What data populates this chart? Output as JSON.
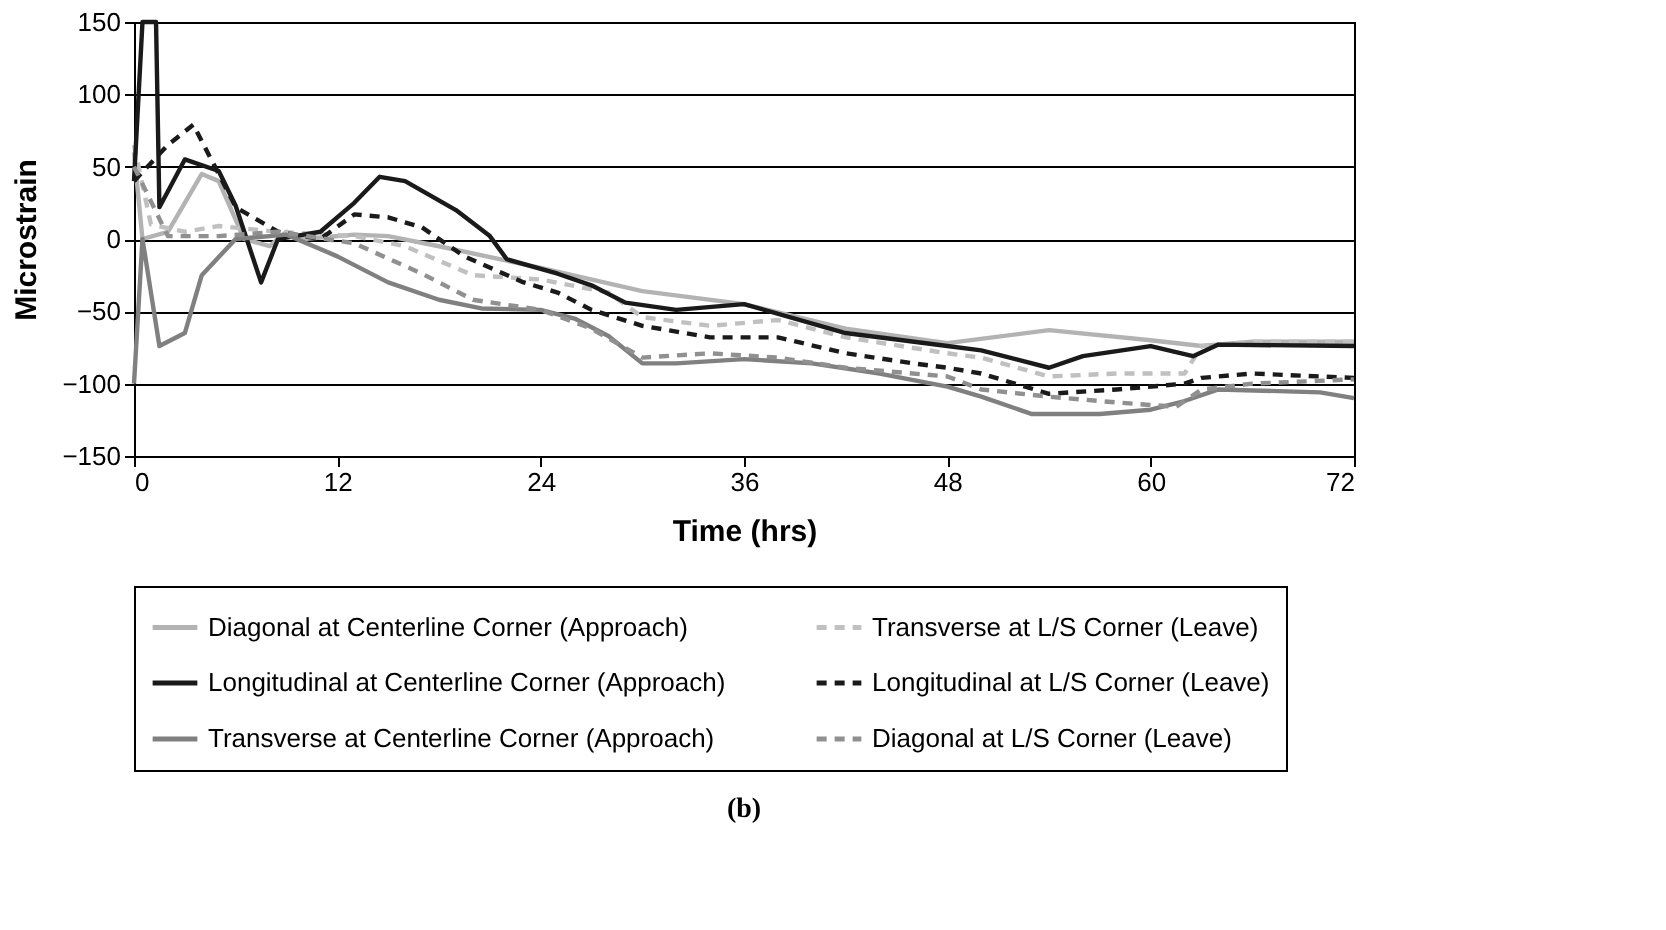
{
  "chart_data": {
    "type": "line",
    "xlabel": "Time (hrs)",
    "ylabel": "Microstrain",
    "xlim": [
      0,
      72
    ],
    "xticks": [
      0,
      12,
      24,
      36,
      48,
      60,
      72
    ],
    "ylim": [
      -150,
      150
    ],
    "yticks": [
      -150,
      -100,
      -50,
      0,
      50,
      100,
      150
    ],
    "grid": "y",
    "legend": "bottom",
    "annotations": [
      "(b)"
    ],
    "series": [
      {
        "name": "Diagonal at Centerline Corner (Approach)",
        "color": "#b3b3b3",
        "line_style": "solid",
        "x": [
          0,
          0.5,
          2,
          4,
          5,
          6.5,
          8,
          9,
          10,
          13,
          15,
          18,
          22,
          24,
          30,
          36,
          42,
          48,
          54,
          60,
          63,
          66,
          72
        ],
        "values": [
          60,
          0,
          5,
          45,
          40,
          0,
          -5,
          5,
          0,
          3,
          2,
          -5,
          -15,
          -20,
          -36,
          -45,
          -62,
          -72,
          -63,
          -70,
          -74,
          -71,
          -71
        ]
      },
      {
        "name": "Transverse at L/S Corner (Leave)",
        "color": "#c0c0c0",
        "line_style": "dashed",
        "x": [
          0,
          1,
          3,
          5,
          8.5,
          13,
          16,
          20,
          24,
          28,
          30,
          34,
          38,
          42,
          48,
          50,
          54,
          58,
          62,
          63,
          66,
          72
        ],
        "values": [
          65,
          10,
          5,
          9,
          5,
          2,
          -5,
          -25,
          -28,
          -37,
          -54,
          -60,
          -56,
          -68,
          -79,
          -82,
          -95,
          -93,
          -93,
          -74,
          -71,
          -71
        ]
      },
      {
        "name": "Longitudinal at Centerline Corner (Approach)",
        "color": "#1a1a1a",
        "line_style": "solid",
        "x": [
          0,
          0.5,
          1,
          1.3,
          1.5,
          3,
          5,
          6,
          7.5,
          8.5,
          9.5,
          11,
          13,
          14.5,
          16,
          19,
          21,
          22,
          25,
          27,
          29,
          32,
          36,
          42,
          48,
          50,
          54,
          56,
          60,
          62.5,
          64,
          72
        ],
        "values": [
          40,
          150,
          150,
          150,
          22,
          55,
          47,
          23,
          -30,
          0,
          2,
          5,
          25,
          43,
          40,
          20,
          2,
          -14,
          -24,
          -32,
          -44,
          -49,
          -45,
          -65,
          -74,
          -77,
          -89,
          -81,
          -74,
          -81,
          -73,
          -74
        ]
      },
      {
        "name": "Longitudinal at L/S Corner (Leave)",
        "color": "#1a1a1a",
        "line_style": "dashed",
        "x": [
          0,
          2,
          3.5,
          5,
          6,
          8.5,
          11,
          13,
          15,
          17,
          19.5,
          23,
          25,
          27,
          30,
          34,
          38,
          42,
          46,
          48,
          50,
          54,
          58,
          62,
          63,
          66,
          72
        ],
        "values": [
          40,
          65,
          79,
          45,
          22,
          5,
          0,
          17,
          15,
          8,
          -12,
          -30,
          -37,
          -49,
          -60,
          -68,
          -68,
          -79,
          -86,
          -89,
          -93,
          -107,
          -104,
          -100,
          -96,
          -93,
          -96
        ]
      },
      {
        "name": "Transverse at Centerline Corner (Approach)",
        "color": "#808080",
        "line_style": "solid",
        "x": [
          0,
          0.5,
          1.5,
          3,
          4,
          6,
          9,
          12,
          15,
          18,
          20.5,
          24,
          26,
          28,
          30,
          32,
          36,
          40,
          44,
          48,
          50,
          53,
          57,
          60,
          62,
          64,
          70,
          72
        ],
        "values": [
          -100,
          0,
          -74,
          -65,
          -25,
          0,
          3,
          -12,
          -30,
          -42,
          -48,
          -49,
          -55,
          -67,
          -86,
          -86,
          -83,
          -86,
          -93,
          -102,
          -109,
          -121,
          -121,
          -118,
          -112,
          -104,
          -106,
          -110
        ]
      },
      {
        "name": "Diagonal at L/S Corner (Leave)",
        "color": "#909090",
        "line_style": "dashed",
        "x": [
          0,
          2,
          5,
          8.5,
          13,
          17,
          20,
          24,
          27,
          30,
          34,
          38,
          42,
          48,
          50,
          54,
          58,
          61.5,
          63,
          66,
          72
        ],
        "values": [
          50,
          2,
          2,
          5,
          -3,
          -24,
          -42,
          -49,
          -62,
          -82,
          -79,
          -82,
          -89,
          -95,
          -104,
          -109,
          -113,
          -116,
          -104,
          -100,
          -97
        ]
      }
    ]
  }
}
